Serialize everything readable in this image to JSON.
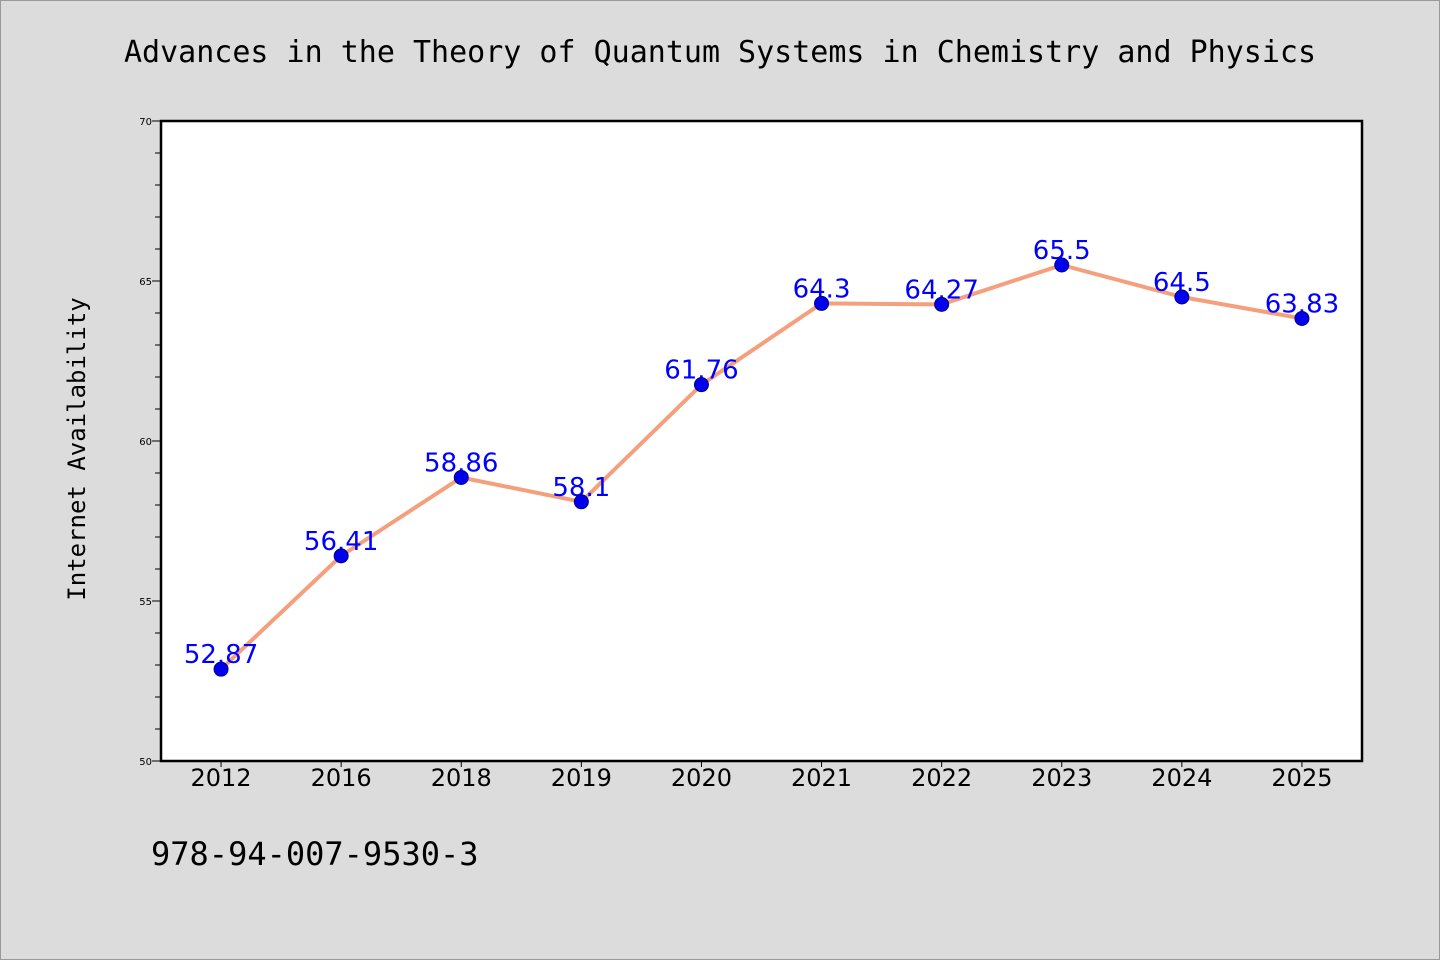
{
  "title": "Advances in the Theory of Quantum Systems in Chemistry and Physics",
  "isbn": "978-94-007-9530-3",
  "colors": {
    "background": "#dcdcdc",
    "plot_background": "#ffffff",
    "line": "#f4a07c",
    "marker": "#0000ee",
    "marker_edge": "#000080",
    "data_label": "#0000ff"
  },
  "chart_data": {
    "type": "line",
    "title": "Advances in the Theory of Quantum Systems in Chemistry and Physics",
    "xlabel": "",
    "ylabel": "Internet Availability",
    "categories": [
      "2012",
      "2016",
      "2018",
      "2019",
      "2020",
      "2021",
      "2022",
      "2023",
      "2024",
      "2025"
    ],
    "values": [
      52.87,
      56.41,
      58.86,
      58.1,
      61.76,
      64.3,
      64.27,
      65.5,
      64.5,
      63.83
    ],
    "data_labels": [
      "52.87",
      "56.41",
      "58.86",
      "58.1",
      "61.76",
      "64.3",
      "64.27",
      "65.5",
      "64.5",
      "63.83"
    ],
    "ylim": [
      50,
      70
    ],
    "yticks": [
      50,
      55,
      60,
      65,
      70
    ],
    "grid": false,
    "legend": "none"
  }
}
